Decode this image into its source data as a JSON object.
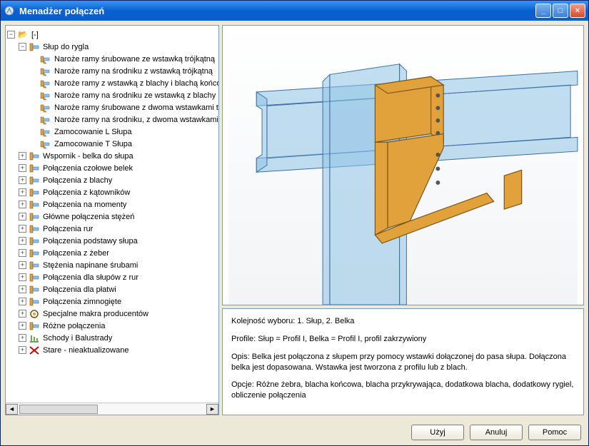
{
  "window": {
    "title": "Menadżer połączeń"
  },
  "colors": {
    "titlebar_top": "#3b95f5",
    "titlebar_bottom": "#0a5fcf",
    "panel_border": "#7b9ebd",
    "button_bg": "#ece9d8",
    "selection": "#316ac5",
    "beam_fill": "#8fc2e6",
    "beam_stroke": "#3a6ea5",
    "bracket_fill": "#e2a23b",
    "bracket_stroke": "#7a5418"
  },
  "tree": {
    "root_label": "[-]",
    "expanded_group_label": "Słup do rygla",
    "leaves": [
      "Naroże ramy śrubowane ze wstawką trójkątną",
      "Naroże ramy na środniku z wstawką trójkątną",
      "Naroże ramy z wstawką z blachy i blachą końco",
      "Naroże ramy na środniku ze wstawką z blachy i",
      "Naroże ramy śrubowane z dwoma wstawkami tró",
      "Naroże ramy na środniku, z dwoma wstawkami t",
      "Zamocowanie L Słupa",
      "Zamocowanie T Słupa"
    ],
    "groups": [
      "Wspornik - belka do słupa",
      "Połączenia czołowe belek",
      "Połączenia z blachy",
      "Połączenia z kątowników",
      "Połączenia na momenty",
      "Główne połączenia stężeń",
      "Połączenia rur",
      "Połączenia podstawy słupa",
      "Połączenia z żeber",
      "Stężenia napinane śrubami",
      "Połączenia dla słupów z rur",
      "Połączenia dla płatwi",
      "Połączenia zimnogięte",
      "Specjalne makra producentów",
      "Różne połączenia",
      "Schody i Balustrady",
      "Stare - nieaktualizowane"
    ]
  },
  "info": {
    "line1": "Kolejność wyboru: 1. Słup, 2. Belka",
    "line2": "Profile: Słup = Profil I, Belka = Profil I, profil zakrzywiony",
    "line3": "Opis: Belka jest połączona z słupem przy pomocy wstawki dołączonej do pasa słupa. Dołączona belka jest dopasowana. Wstawka jest tworzona z profilu lub z blach.",
    "line4": "Opcje:  Różne żebra, blacha końcowa, blacha przykrywająca, dodatkowa blacha, dodatkowy rygiel, obliczenie połączenia"
  },
  "buttons": {
    "use": "Użyj",
    "cancel": "Anuluj",
    "help": "Pomoc"
  },
  "icons": {
    "folder_open": "📂",
    "minimize": "_",
    "maximize": "□",
    "close": "×",
    "scroll_left": "◄",
    "scroll_right": "►"
  }
}
